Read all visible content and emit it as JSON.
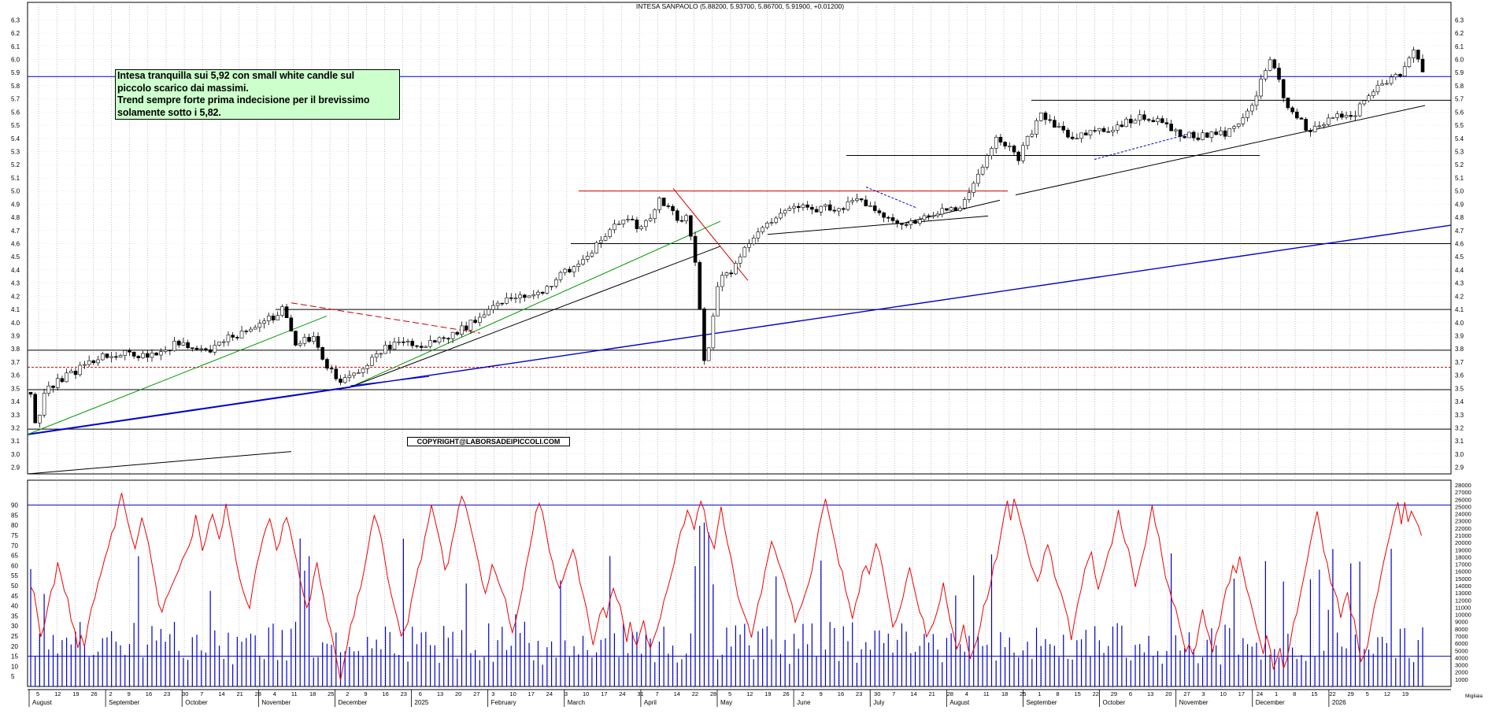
{
  "chart_data": [
    {
      "type": "candlestick",
      "title": "INTESA SANPAOLO (5.88200, 5.93700, 5.86700, 5.91900, +0.01200)",
      "ylim": [
        2.85,
        6.35
      ],
      "y_ticks": [
        2.9,
        3.0,
        3.1,
        3.2,
        3.3,
        3.4,
        3.5,
        3.6,
        3.7,
        3.8,
        3.9,
        4.0,
        4.1,
        4.2,
        4.3,
        4.4,
        4.5,
        4.6,
        4.7,
        4.8,
        4.9,
        5.0,
        5.1,
        5.2,
        5.3,
        5.4,
        5.5,
        5.6,
        5.7,
        5.8,
        5.9,
        6.0,
        6.1,
        6.2,
        6.3
      ],
      "grid": true,
      "price_path": [
        [
          0,
          3.47
        ],
        [
          5,
          3.2
        ],
        [
          14,
          3.5
        ],
        [
          30,
          3.58
        ],
        [
          60,
          3.74
        ],
        [
          80,
          3.76
        ],
        [
          110,
          3.75
        ],
        [
          130,
          3.84
        ],
        [
          160,
          3.78
        ],
        [
          180,
          3.9
        ],
        [
          200,
          3.95
        ],
        [
          225,
          4.1
        ],
        [
          236,
          3.85
        ],
        [
          252,
          3.87
        ],
        [
          262,
          3.7
        ],
        [
          275,
          3.55
        ],
        [
          290,
          3.6
        ],
        [
          310,
          3.78
        ],
        [
          330,
          3.85
        ],
        [
          350,
          3.83
        ],
        [
          370,
          3.88
        ],
        [
          390,
          3.98
        ],
        [
          410,
          4.13
        ],
        [
          430,
          4.2
        ],
        [
          450,
          4.2
        ],
        [
          470,
          4.35
        ],
        [
          490,
          4.46
        ],
        [
          510,
          4.63
        ],
        [
          530,
          4.82
        ],
        [
          545,
          4.7
        ],
        [
          560,
          4.93
        ],
        [
          575,
          4.8
        ],
        [
          586,
          4.78
        ],
        [
          592,
          4.48
        ],
        [
          597,
          4.0
        ],
        [
          601,
          3.65
        ],
        [
          606,
          3.92
        ],
        [
          612,
          4.3
        ],
        [
          625,
          4.4
        ],
        [
          640,
          4.6
        ],
        [
          660,
          4.78
        ],
        [
          680,
          4.9
        ],
        [
          700,
          4.87
        ],
        [
          720,
          4.87
        ],
        [
          740,
          4.93
        ],
        [
          755,
          4.82
        ],
        [
          770,
          4.75
        ],
        [
          790,
          4.78
        ],
        [
          810,
          4.84
        ],
        [
          830,
          4.88
        ],
        [
          840,
          5.04
        ],
        [
          860,
          5.42
        ],
        [
          880,
          5.25
        ],
        [
          900,
          5.6
        ],
        [
          925,
          5.4
        ],
        [
          945,
          5.45
        ],
        [
          965,
          5.48
        ],
        [
          985,
          5.55
        ],
        [
          1005,
          5.55
        ],
        [
          1025,
          5.42
        ],
        [
          1050,
          5.42
        ],
        [
          1070,
          5.45
        ],
        [
          1090,
          5.7
        ],
        [
          1105,
          6.02
        ],
        [
          1120,
          5.62
        ],
        [
          1140,
          5.45
        ],
        [
          1160,
          5.55
        ],
        [
          1180,
          5.6
        ],
        [
          1200,
          5.8
        ],
        [
          1220,
          5.9
        ],
        [
          1232,
          6.05
        ],
        [
          1240,
          5.91
        ]
      ],
      "x_labels": [
        "August",
        "September",
        "October",
        "November",
        "December",
        "2025",
        "February",
        "March",
        "April",
        "May",
        "June",
        "July",
        "August",
        "September",
        "October",
        "November",
        "December",
        "2026"
      ],
      "x_day_ticks": [
        "5",
        "12",
        "19",
        "26",
        "2",
        "9",
        "16",
        "23",
        "30",
        "7",
        "14",
        "21",
        "28",
        "4",
        "11",
        "18",
        "25",
        "2",
        "9",
        "16",
        "23",
        "6",
        "13",
        "20",
        "27",
        "3",
        "10",
        "17",
        "24",
        "3",
        "10",
        "17",
        "24",
        "31",
        "7",
        "14",
        "22",
        "28",
        "5",
        "12",
        "19",
        "26",
        "2",
        "9",
        "16",
        "23",
        "30",
        "7",
        "14",
        "21",
        "28",
        "4",
        "11",
        "18",
        "25",
        "1",
        "8",
        "15",
        "22",
        "29",
        "6",
        "13",
        "20",
        "27",
        "3",
        "10",
        "17",
        "24",
        "1",
        "8",
        "15",
        "22",
        "29",
        "5",
        "12",
        "19"
      ],
      "annotations": {
        "comment_lines": [
          "Intesa tranquilla sui 5,92 con small white candle sul",
          "piccolo scarico dai massimi.",
          "Trend sempre forte  prima indecisione per il brevissimo",
          "solamente sotto i 5,82."
        ],
        "copyright": "COPYRIGHT@LABORSADEIPICCOLI.COM"
      },
      "horizontal_levels": [
        {
          "price": 5.87,
          "color": "#0000cc"
        },
        {
          "price": 5.69,
          "color": "#000000"
        },
        {
          "price": 5.27,
          "color": "#000000"
        },
        {
          "price": 5.0,
          "color": "#cc0000"
        },
        {
          "price": 4.6,
          "color": "#000000"
        },
        {
          "price": 4.1,
          "color": "#000000"
        },
        {
          "price": 3.79,
          "color": "#000000"
        },
        {
          "price": 3.66,
          "color": "#cc0000"
        },
        {
          "price": 3.49,
          "color": "#000000"
        },
        {
          "price": 3.19,
          "color": "#000000"
        },
        {
          "price": 2.85,
          "color": "#000000"
        }
      ],
      "line_colors": {
        "support": "#0000cc",
        "trend": "#000000",
        "short_trend": "#009900",
        "resistance": "#cc0000"
      }
    },
    {
      "type": "line+bar",
      "oscillator_ylim": [
        0,
        100
      ],
      "oscillator_ticks": [
        5,
        10,
        15,
        20,
        25,
        30,
        35,
        40,
        45,
        50,
        55,
        60,
        65,
        70,
        75,
        80,
        85,
        90
      ],
      "oscillator_levels": [
        90,
        15
      ],
      "oscillator_color": "#ee0000",
      "volume_ylim": [
        0,
        28000
      ],
      "volume_ticks": [
        28000,
        27000,
        26000,
        25000,
        24000,
        23000,
        22000,
        21000,
        20000,
        19000,
        18000,
        17000,
        16000,
        15000,
        14000,
        13000,
        12000,
        11000,
        10000,
        9000,
        8000,
        7000,
        6000,
        5000,
        4000,
        3000,
        2000,
        1000
      ],
      "volume_color": "#0000cc",
      "volume_unit_label": "Migliaia"
    }
  ]
}
